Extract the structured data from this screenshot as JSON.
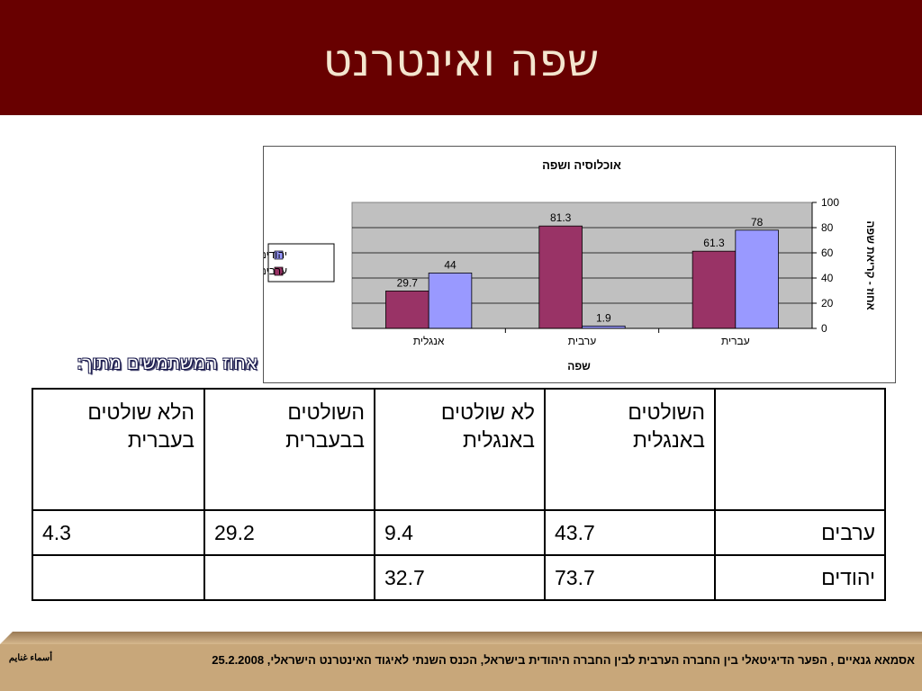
{
  "slide": {
    "title": "שפה ואינטרנט"
  },
  "colors": {
    "header_bg": "#680000",
    "arabs": "#993366",
    "jews": "#9999ff",
    "plot_bg": "#c0c0c0",
    "footer_bg": "#c8a77a"
  },
  "chart_data": {
    "type": "bar",
    "title": "אוכלוסיה ושפה",
    "xlabel": "שפה",
    "ylabel": "אחוז - קריאת שפה",
    "categories": [
      "אנגלית",
      "ערבית",
      "עברית"
    ],
    "series": [
      {
        "name": "ערבים",
        "values": [
          29.7,
          81.3,
          61.3
        ],
        "color": "#993366"
      },
      {
        "name": "יהודים",
        "values": [
          44,
          1.9,
          78
        ],
        "color": "#9999ff"
      }
    ],
    "ylim": [
      0,
      100
    ],
    "yticks": [
      0,
      20,
      40,
      60,
      80,
      100
    ],
    "grid": true,
    "legend": "left"
  },
  "users_label": "אחוז המשתמשים מתוך:",
  "table": {
    "headers": [
      "",
      "השולטים באנגלית",
      "לא שולטים באנגלית",
      "השולטים בבעברית",
      "הלא שולטים בעברית"
    ],
    "rows": [
      {
        "label": "ערבים",
        "cells": [
          "43.7",
          "9.4",
          "29.2",
          "4.3"
        ]
      },
      {
        "label": "יהודים",
        "cells": [
          "73.7",
          "32.7",
          "",
          ""
        ]
      }
    ]
  },
  "footer": {
    "text": "אסמאא גנאיים , הפער הדיגיטאלי בין החברה הערבית לבין החברה היהודית בישראל, הכנס השנתי לאיגוד האינטרנט הישראלי, 25.2.2008",
    "corner_label": "أسماء غنايم"
  }
}
